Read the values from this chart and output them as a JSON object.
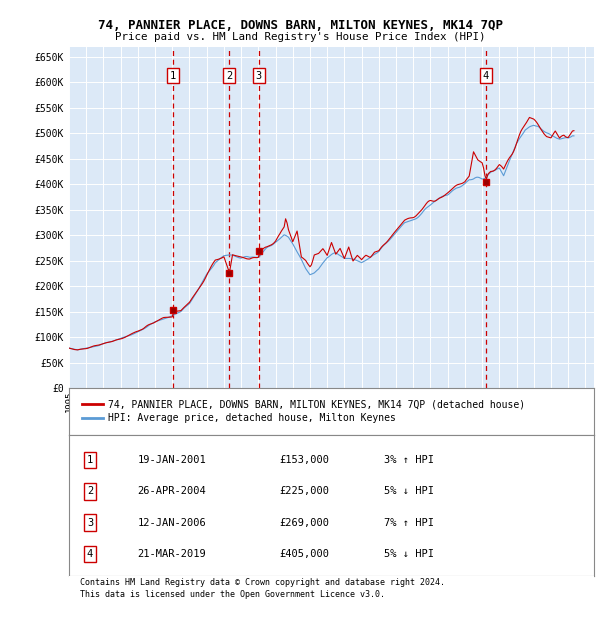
{
  "title": "74, PANNIER PLACE, DOWNS BARN, MILTON KEYNES, MK14 7QP",
  "subtitle": "Price paid vs. HM Land Registry's House Price Index (HPI)",
  "ylim": [
    0,
    670000
  ],
  "yticks": [
    0,
    50000,
    100000,
    150000,
    200000,
    250000,
    300000,
    350000,
    400000,
    450000,
    500000,
    550000,
    600000,
    650000
  ],
  "ytick_labels": [
    "£0",
    "£50K",
    "£100K",
    "£150K",
    "£200K",
    "£250K",
    "£300K",
    "£350K",
    "£400K",
    "£450K",
    "£500K",
    "£550K",
    "£600K",
    "£650K"
  ],
  "plot_bg_color": "#dce9f7",
  "grid_color": "#ffffff",
  "red_line_color": "#cc0000",
  "blue_line_color": "#5b9bd5",
  "dashed_line_color": "#cc0000",
  "sale_points": [
    {
      "year": 2001.04,
      "price": 153000,
      "label": "1"
    },
    {
      "year": 2004.32,
      "price": 225000,
      "label": "2"
    },
    {
      "year": 2006.03,
      "price": 269000,
      "label": "3"
    },
    {
      "year": 2019.22,
      "price": 405000,
      "label": "4"
    }
  ],
  "legend_entries": [
    {
      "color": "#cc0000",
      "text": "74, PANNIER PLACE, DOWNS BARN, MILTON KEYNES, MK14 7QP (detached house)"
    },
    {
      "color": "#5b9bd5",
      "text": "HPI: Average price, detached house, Milton Keynes"
    }
  ],
  "table_rows": [
    {
      "num": "1",
      "date": "19-JAN-2001",
      "price": "£153,000",
      "hpi": "3% ↑ HPI"
    },
    {
      "num": "2",
      "date": "26-APR-2004",
      "price": "£225,000",
      "hpi": "5% ↓ HPI"
    },
    {
      "num": "3",
      "date": "12-JAN-2006",
      "price": "£269,000",
      "hpi": "7% ↑ HPI"
    },
    {
      "num": "4",
      "date": "21-MAR-2019",
      "price": "£405,000",
      "hpi": "5% ↓ HPI"
    }
  ],
  "footer": "Contains HM Land Registry data © Crown copyright and database right 2024.\nThis data is licensed under the Open Government Licence v3.0."
}
